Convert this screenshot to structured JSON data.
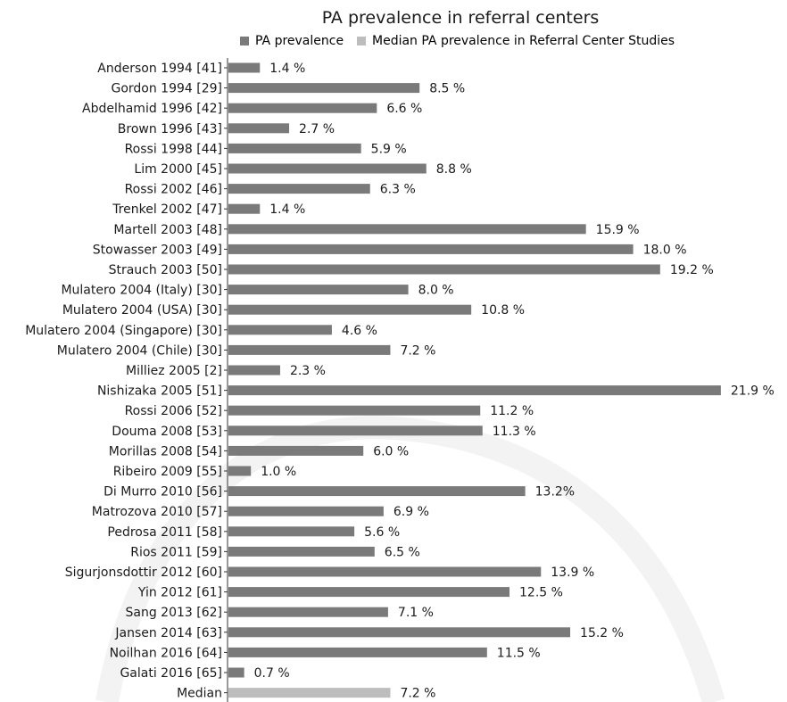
{
  "chart_data": {
    "type": "bar",
    "orientation": "horizontal",
    "title": "PA prevalence in referral centers",
    "legend_position": "top",
    "grid": false,
    "xlim": [
      0,
      22.5
    ],
    "series": [
      {
        "name": "PA prevalence",
        "color": "#7a7a7a"
      },
      {
        "name": "Median PA prevalence in Referral Center Studies",
        "color": "#bdbdbd"
      }
    ],
    "categories": [
      "Anderson 1994 [41]",
      "Gordon 1994 [29]",
      "Abdelhamid 1996 [42]",
      "Brown 1996 [43]",
      "Rossi 1998 [44]",
      "Lim 2000 [45]",
      "Rossi 2002 [46]",
      "Trenkel 2002 [47]",
      "Martell 2003 [48]",
      "Stowasser 2003 [49]",
      "Strauch 2003 [50]",
      "Mulatero 2004 (Italy) [30]",
      "Mulatero 2004 (USA) [30]",
      "Mulatero 2004 (Singapore) [30]",
      "Mulatero 2004 (Chile) [30]",
      "Milliez 2005 [2]",
      "Nishizaka 2005 [51]",
      "Rossi 2006 [52]",
      "Douma 2008 [53]",
      "Morillas 2008 [54]",
      "Ribeiro 2009 [55]",
      "Di Murro 2010 [56]",
      "Matrozova 2010 [57]",
      "Pedrosa 2011 [58]",
      "Rios 2011 [59]",
      "Sigurjonsdottir 2012 [60]",
      "Yin 2012 [61]",
      "Sang 2013 [62]",
      "Jansen 2014 [63]",
      "Noilhan 2016 [64]",
      "Galati 2016 [65]",
      "Median"
    ],
    "values": [
      1.4,
      8.5,
      6.6,
      2.7,
      5.9,
      8.8,
      6.3,
      1.4,
      15.9,
      18.0,
      19.2,
      8.0,
      10.8,
      4.6,
      7.2,
      2.3,
      21.9,
      11.2,
      11.3,
      6.0,
      1.0,
      13.2,
      6.9,
      5.6,
      6.5,
      13.9,
      12.5,
      7.1,
      15.2,
      11.5,
      0.7,
      7.2
    ],
    "value_labels": [
      "1.4 %",
      "8.5 %",
      "6.6 %",
      "2.7 %",
      "5.9 %",
      "8.8 %",
      "6.3 %",
      "1.4 %",
      "15.9 %",
      "18.0 %",
      "19.2 %",
      "8.0 %",
      "10.8 %",
      "4.6 %",
      "7.2 %",
      "2.3 %",
      "21.9 %",
      "11.2 %",
      "11.3 %",
      "6.0 %",
      "1.0 %",
      "13.2%",
      "6.9 %",
      "5.6 %",
      "6.5 %",
      "13.9 %",
      "12.5 %",
      "7.1 %",
      "15.2 %",
      "11.5 %",
      "0.7 %",
      "7.2 %"
    ],
    "series_index": [
      0,
      0,
      0,
      0,
      0,
      0,
      0,
      0,
      0,
      0,
      0,
      0,
      0,
      0,
      0,
      0,
      0,
      0,
      0,
      0,
      0,
      0,
      0,
      0,
      0,
      0,
      0,
      0,
      0,
      0,
      0,
      1
    ]
  }
}
